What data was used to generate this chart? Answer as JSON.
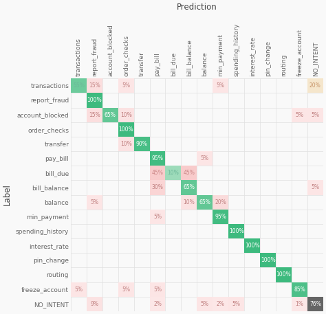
{
  "labels": [
    "transactions",
    "report_fraud",
    "account_blocked",
    "order_checks",
    "transfer",
    "pay_bill",
    "bill_due",
    "bill_balance",
    "balance",
    "min_payment",
    "spending_history",
    "interest_rate",
    "pin_change",
    "routing",
    "freeze_account",
    "NO_INTENT"
  ],
  "matrix": [
    [
      55,
      15,
      0,
      5,
      0,
      0,
      0,
      0,
      0,
      5,
      0,
      0,
      0,
      0,
      0,
      20
    ],
    [
      0,
      100,
      0,
      0,
      0,
      0,
      0,
      0,
      0,
      0,
      0,
      0,
      0,
      0,
      0,
      0
    ],
    [
      0,
      15,
      65,
      10,
      0,
      0,
      0,
      0,
      0,
      0,
      0,
      0,
      0,
      0,
      5,
      5
    ],
    [
      0,
      0,
      0,
      100,
      0,
      0,
      0,
      0,
      0,
      0,
      0,
      0,
      0,
      0,
      0,
      0
    ],
    [
      0,
      0,
      0,
      10,
      90,
      0,
      0,
      0,
      0,
      0,
      0,
      0,
      0,
      0,
      0,
      0
    ],
    [
      0,
      0,
      0,
      0,
      0,
      95,
      0,
      0,
      5,
      0,
      0,
      0,
      0,
      0,
      0,
      0
    ],
    [
      0,
      0,
      0,
      0,
      0,
      45,
      10,
      45,
      0,
      0,
      0,
      0,
      0,
      0,
      0,
      0
    ],
    [
      0,
      0,
      0,
      0,
      0,
      30,
      0,
      65,
      0,
      0,
      0,
      0,
      0,
      0,
      0,
      5
    ],
    [
      0,
      5,
      0,
      0,
      0,
      0,
      0,
      10,
      65,
      20,
      0,
      0,
      0,
      0,
      0,
      0
    ],
    [
      0,
      0,
      0,
      0,
      0,
      5,
      0,
      0,
      0,
      95,
      0,
      0,
      0,
      0,
      0,
      0
    ],
    [
      0,
      0,
      0,
      0,
      0,
      0,
      0,
      0,
      0,
      0,
      100,
      0,
      0,
      0,
      0,
      0
    ],
    [
      0,
      0,
      0,
      0,
      0,
      0,
      0,
      0,
      0,
      0,
      0,
      100,
      0,
      0,
      0,
      0
    ],
    [
      0,
      0,
      0,
      0,
      0,
      0,
      0,
      0,
      0,
      0,
      0,
      0,
      100,
      0,
      0,
      0
    ],
    [
      0,
      0,
      0,
      0,
      0,
      0,
      0,
      0,
      0,
      0,
      0,
      0,
      0,
      100,
      0,
      0
    ],
    [
      5,
      0,
      0,
      5,
      0,
      5,
      0,
      0,
      0,
      0,
      0,
      0,
      0,
      0,
      85,
      0
    ],
    [
      0,
      9,
      0,
      0,
      0,
      2,
      0,
      0,
      5,
      2,
      5,
      0,
      0,
      0,
      1,
      76
    ]
  ],
  "title": "Prediction",
  "ylabel": "Label",
  "background_color": "#f9f9f9",
  "grid_color": "#e0e0e0",
  "font_size_cell": 5.5,
  "font_size_label": 6.5,
  "font_size_title": 8.5,
  "cell_size": 1
}
